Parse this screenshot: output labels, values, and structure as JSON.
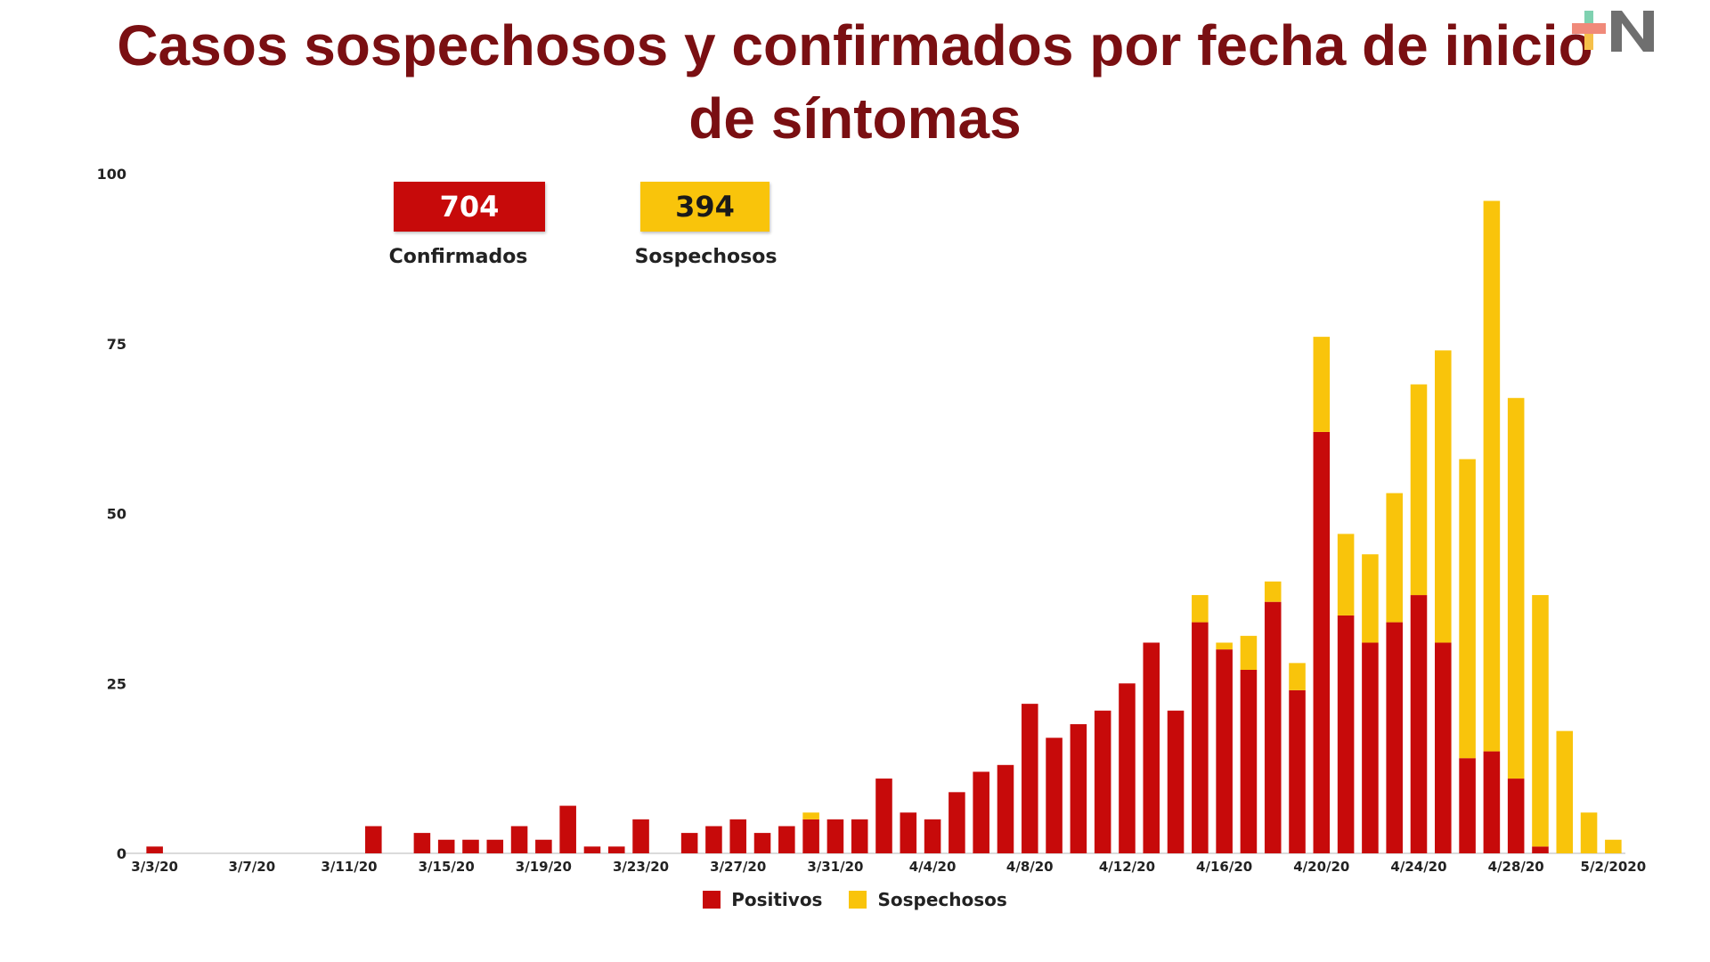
{
  "title_line1": "Casos sospechosos y confirmados  por fecha de inicio",
  "title_line2": "de síntomas",
  "kpis": {
    "confirmed_value": "704",
    "confirmed_label": "Confirmados",
    "confirmed_color": "#c70a0a",
    "suspected_value": "394",
    "suspected_label": "Sospechosos",
    "suspected_color": "#f9c40b"
  },
  "chart_data": {
    "type": "bar",
    "stacked": true,
    "ylim": [
      0,
      100
    ],
    "y_ticks": [
      0,
      25,
      50,
      75,
      100
    ],
    "grid": false,
    "legend_position": "bottom",
    "x_ticks": [
      "3/3/20",
      "3/7/20",
      "3/11/20",
      "3/15/20",
      "3/19/20",
      "3/23/20",
      "3/27/20",
      "3/31/20",
      "4/4/20",
      "4/8/20",
      "4/12/20",
      "4/16/20",
      "4/20/20",
      "4/24/20",
      "4/28/20",
      "5/2/2020"
    ],
    "categories": [
      "3/3/20",
      "3/4/20",
      "3/5/20",
      "3/6/20",
      "3/7/20",
      "3/8/20",
      "3/9/20",
      "3/10/20",
      "3/11/20",
      "3/12/20",
      "3/13/20",
      "3/14/20",
      "3/15/20",
      "3/16/20",
      "3/17/20",
      "3/18/20",
      "3/19/20",
      "3/20/20",
      "3/21/20",
      "3/22/20",
      "3/23/20",
      "3/24/20",
      "3/25/20",
      "3/26/20",
      "3/27/20",
      "3/28/20",
      "3/29/20",
      "3/30/20",
      "3/31/20",
      "4/1/20",
      "4/2/20",
      "4/3/20",
      "4/4/20",
      "4/5/20",
      "4/6/20",
      "4/7/20",
      "4/8/20",
      "4/9/20",
      "4/10/20",
      "4/11/20",
      "4/12/20",
      "4/13/20",
      "4/14/20",
      "4/15/20",
      "4/16/20",
      "4/17/20",
      "4/18/20",
      "4/19/20",
      "4/20/20",
      "4/21/20",
      "4/22/20",
      "4/23/20",
      "4/24/20",
      "4/25/20",
      "4/26/20",
      "4/27/20",
      "4/28/20",
      "4/29/20",
      "4/30/20",
      "5/1/20",
      "5/2/2020"
    ],
    "series": [
      {
        "name": "Positivos",
        "color": "#c70a0a",
        "values": [
          1,
          0,
          0,
          0,
          0,
          0,
          0,
          0,
          0,
          4,
          0,
          3,
          2,
          2,
          2,
          4,
          2,
          7,
          1,
          1,
          5,
          0,
          3,
          4,
          5,
          3,
          4,
          5,
          5,
          5,
          11,
          6,
          5,
          9,
          12,
          13,
          22,
          17,
          19,
          21,
          25,
          31,
          21,
          34,
          30,
          27,
          37,
          24,
          62,
          35,
          31,
          34,
          38,
          31,
          14,
          15,
          11,
          1,
          0,
          0,
          0
        ]
      },
      {
        "name": "Sospechosos",
        "color": "#f9c40b",
        "values": [
          0,
          0,
          0,
          0,
          0,
          0,
          0,
          0,
          0,
          0,
          0,
          0,
          0,
          0,
          0,
          0,
          0,
          0,
          0,
          0,
          0,
          0,
          0,
          0,
          0,
          0,
          0,
          1,
          0,
          0,
          0,
          0,
          0,
          0,
          0,
          0,
          0,
          0,
          0,
          0,
          0,
          0,
          0,
          4,
          1,
          5,
          3,
          4,
          14,
          12,
          13,
          19,
          31,
          43,
          44,
          81,
          56,
          37,
          18,
          6,
          2
        ]
      }
    ]
  }
}
